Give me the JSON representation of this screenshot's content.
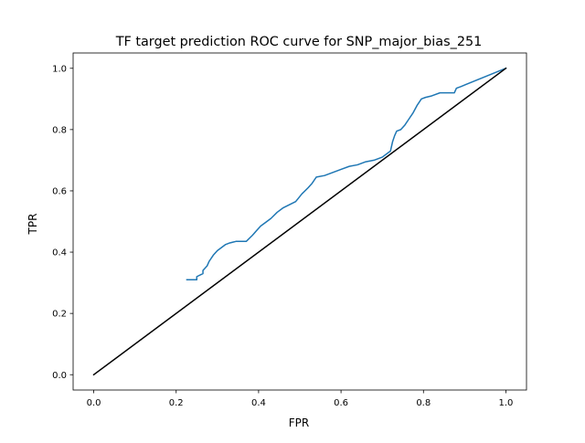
{
  "chart_data": {
    "type": "line",
    "title": "TF target prediction ROC curve for SNP_major_bias_251",
    "xlabel": "FPR",
    "ylabel": "TPR",
    "xlim": [
      -0.05,
      1.05
    ],
    "ylim": [
      -0.05,
      1.05
    ],
    "xticks": [
      0.0,
      0.2,
      0.4,
      0.6,
      0.8,
      1.0
    ],
    "yticks": [
      0.0,
      0.2,
      0.4,
      0.6,
      0.8,
      1.0
    ],
    "xtick_labels": [
      "0.0",
      "0.2",
      "0.4",
      "0.6",
      "0.8",
      "1.0"
    ],
    "ytick_labels": [
      "0.0",
      "0.2",
      "0.4",
      "0.6",
      "0.8",
      "1.0"
    ],
    "grid": false,
    "series": [
      {
        "color": "#1f77b4",
        "x": [
          0.226,
          0.25,
          0.25,
          0.265,
          0.265,
          0.275,
          0.28,
          0.29,
          0.3,
          0.31,
          0.32,
          0.33,
          0.345,
          0.37,
          0.385,
          0.395,
          0.405,
          0.42,
          0.43,
          0.445,
          0.46,
          0.475,
          0.49,
          0.505,
          0.52,
          0.53,
          0.54,
          0.56,
          0.58,
          0.6,
          0.62,
          0.64,
          0.66,
          0.68,
          0.7,
          0.715,
          0.72,
          0.725,
          0.73,
          0.735,
          0.745,
          0.755,
          0.765,
          0.775,
          0.785,
          0.795,
          0.805,
          0.82,
          0.84,
          0.865,
          0.875,
          0.88,
          0.89,
          1.0
        ],
        "y": [
          0.31,
          0.31,
          0.32,
          0.33,
          0.34,
          0.355,
          0.37,
          0.39,
          0.405,
          0.415,
          0.425,
          0.43,
          0.435,
          0.435,
          0.455,
          0.47,
          0.485,
          0.5,
          0.51,
          0.53,
          0.545,
          0.555,
          0.565,
          0.59,
          0.61,
          0.625,
          0.645,
          0.65,
          0.66,
          0.67,
          0.68,
          0.685,
          0.695,
          0.7,
          0.71,
          0.725,
          0.73,
          0.76,
          0.78,
          0.795,
          0.8,
          0.815,
          0.835,
          0.855,
          0.88,
          0.9,
          0.905,
          0.91,
          0.92,
          0.92,
          0.92,
          0.935,
          0.94,
          1.0
        ]
      },
      {
        "color": "#000000",
        "x": [
          0.0,
          1.0
        ],
        "y": [
          0.0,
          1.0
        ]
      }
    ]
  }
}
